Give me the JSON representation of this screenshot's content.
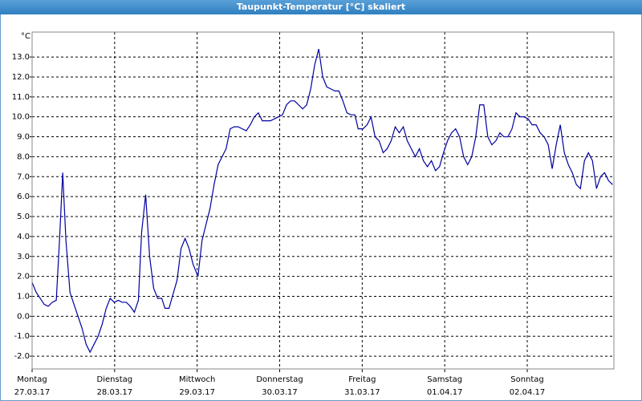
{
  "chart_data": {
    "type": "line",
    "title": "Taupunkt-Temperatur [°C] skaliert",
    "y_label": "°C",
    "xlim": [
      0,
      7.05
    ],
    "xticks": [
      {
        "value": 0,
        "label": "Montag"
      },
      {
        "value": 1,
        "label": "Dienstag"
      },
      {
        "value": 2,
        "label": "Mittwoch"
      },
      {
        "value": 3,
        "label": "Donnerstag"
      },
      {
        "value": 4,
        "label": "Freitag"
      },
      {
        "value": 5,
        "label": "Samstag"
      },
      {
        "value": 6,
        "label": "Sonntag"
      }
    ],
    "xtick_dates": [
      "27.03.17",
      "28.03.17",
      "29.03.17",
      "30.03.17",
      "31.03.17",
      "01.04.17",
      "02.04.17"
    ],
    "ylim": [
      -2.64,
      14.25
    ],
    "yticks": [
      {
        "value": -2,
        "label": "-2.0"
      },
      {
        "value": -1,
        "label": "-1.0"
      },
      {
        "value": 0,
        "label": "0.0"
      },
      {
        "value": 1,
        "label": "1.0"
      },
      {
        "value": 2,
        "label": "2.0"
      },
      {
        "value": 3,
        "label": "3.0"
      },
      {
        "value": 4,
        "label": "4.0"
      },
      {
        "value": 5,
        "label": "5.0"
      },
      {
        "value": 6,
        "label": "6.0"
      },
      {
        "value": 7,
        "label": "7.0"
      },
      {
        "value": 8,
        "label": "8.0"
      },
      {
        "value": 9,
        "label": "9.0"
      },
      {
        "value": 10,
        "label": "10.0"
      },
      {
        "value": 11,
        "label": "11.0"
      },
      {
        "value": 12,
        "label": "12.0"
      },
      {
        "value": 13,
        "label": "13.0"
      }
    ],
    "grid": true,
    "x": [
      0,
      0.049,
      0.098,
      0.146,
      0.195,
      0.244,
      0.293,
      0.332,
      0.371,
      0.41,
      0.459,
      0.507,
      0.556,
      0.605,
      0.654,
      0.702,
      0.751,
      0.8,
      0.849,
      0.898,
      0.946,
      0.995,
      1.044,
      1.093,
      1.141,
      1.19,
      1.239,
      1.288,
      1.327,
      1.376,
      1.424,
      1.473,
      1.522,
      1.571,
      1.61,
      1.659,
      1.707,
      1.756,
      1.805,
      1.854,
      1.902,
      1.951,
      2.01,
      2.059,
      2.107,
      2.156,
      2.205,
      2.254,
      2.302,
      2.351,
      2.4,
      2.449,
      2.498,
      2.546,
      2.595,
      2.644,
      2.693,
      2.741,
      2.79,
      2.839,
      2.888,
      2.937,
      2.985,
      3.034,
      3.083,
      3.132,
      3.18,
      3.229,
      3.278,
      3.327,
      3.376,
      3.424,
      3.473,
      3.522,
      3.571,
      3.62,
      3.668,
      3.717,
      3.766,
      3.815,
      3.863,
      3.912,
      3.951,
      4.01,
      4.059,
      4.107,
      4.156,
      4.205,
      4.254,
      4.302,
      4.351,
      4.4,
      4.449,
      4.498,
      4.546,
      4.595,
      4.644,
      4.693,
      4.741,
      4.79,
      4.839,
      4.888,
      4.937,
      4.985,
      5.034,
      5.083,
      5.132,
      5.18,
      5.229,
      5.278,
      5.327,
      5.376,
      5.424,
      5.473,
      5.522,
      5.571,
      5.62,
      5.668,
      5.717,
      5.766,
      5.815,
      5.863,
      5.912,
      5.961,
      6.01,
      6.059,
      6.107,
      6.156,
      6.205,
      6.254,
      6.302,
      6.351,
      6.4,
      6.449,
      6.498,
      6.546,
      6.595,
      6.644,
      6.693,
      6.741,
      6.79,
      6.839,
      6.888,
      6.937,
      6.985,
      7.034
    ],
    "series": [
      {
        "color": "#0000a0",
        "values": [
          1.7,
          1.2,
          0.9,
          0.6,
          0.5,
          0.7,
          0.8,
          3.8,
          7.2,
          3.8,
          1.2,
          0.6,
          0.0,
          -0.6,
          -1.4,
          -1.8,
          -1.4,
          -1.0,
          -0.4,
          0.4,
          0.9,
          0.7,
          0.8,
          0.7,
          0.7,
          0.5,
          0.2,
          0.8,
          4.2,
          6.1,
          3.0,
          1.4,
          0.9,
          0.9,
          0.4,
          0.4,
          1.1,
          1.8,
          3.4,
          3.9,
          3.4,
          2.6,
          2.0,
          3.8,
          4.6,
          5.4,
          6.6,
          7.6,
          8.0,
          8.4,
          9.4,
          9.5,
          9.5,
          9.4,
          9.3,
          9.6,
          10.0,
          10.2,
          9.8,
          9.8,
          9.8,
          9.9,
          10.0,
          10.1,
          10.6,
          10.8,
          10.8,
          10.6,
          10.4,
          10.6,
          11.4,
          12.6,
          13.4,
          12.0,
          11.5,
          11.4,
          11.3,
          11.3,
          10.8,
          10.2,
          10.1,
          10.1,
          9.4,
          9.4,
          9.6,
          10.0,
          9.0,
          8.8,
          8.2,
          8.4,
          8.8,
          9.5,
          9.2,
          9.5,
          8.8,
          8.4,
          8.0,
          8.4,
          7.8,
          7.5,
          7.8,
          7.3,
          7.5,
          8.2,
          8.8,
          9.2,
          9.4,
          9.0,
          8.0,
          7.6,
          8.0,
          9.0,
          10.6,
          10.6,
          9.0,
          8.6,
          8.8,
          9.2,
          9.0,
          9.0,
          9.4,
          10.2,
          10.0,
          10.0,
          9.9,
          9.6,
          9.6,
          9.2,
          9.0,
          8.6,
          7.4,
          8.6,
          9.6,
          8.2,
          7.6,
          7.2,
          6.6,
          6.4,
          7.8,
          8.2,
          7.8,
          6.4,
          7.0,
          7.2,
          6.8,
          6.6
        ]
      }
    ]
  }
}
